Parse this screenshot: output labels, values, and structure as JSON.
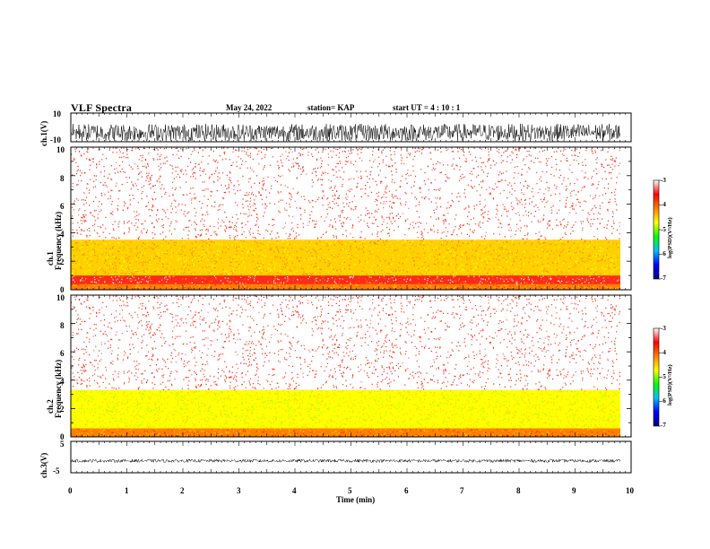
{
  "header": {
    "title": "VLF Spectra",
    "date": "May 24, 2022",
    "station": "station= KAP",
    "start": "start  UT =   4 : 10 : 1"
  },
  "colorbar": {
    "label": "log(PSD)(V²/Hz)",
    "ticks": [
      "-3",
      "-4",
      "-5",
      "-6",
      "-7"
    ],
    "range": [
      -7,
      -3
    ],
    "colors": [
      "#000080",
      "#0000ff",
      "#00c0ff",
      "#00ff00",
      "#ffff00",
      "#ff8000",
      "#ff0000",
      "#ffffff"
    ]
  },
  "chart_data": [
    {
      "type": "line",
      "panel": "ch1-waveform",
      "ylabel": "ch.1(V)",
      "ylim": [
        -10,
        10
      ],
      "yticks": [
        "10",
        "-10"
      ],
      "xlim": [
        0,
        10
      ],
      "description_values": {
        "mean": -3.5,
        "amplitude": 6
      }
    },
    {
      "type": "heatmap",
      "panel": "ch1-spectrogram",
      "ylabel": "ch.1\nFrequency (kHz)",
      "ylabel_lines": [
        "ch.1",
        "Frequency  (kHz)"
      ],
      "ylim": [
        0,
        10
      ],
      "yticks": [
        "10",
        "8",
        "6",
        "4",
        "2",
        "0"
      ],
      "xlim": [
        0,
        10
      ],
      "bands": [
        {
          "f_low": 0,
          "f_high": 0.4,
          "log_psd": -4.2
        },
        {
          "f_low": 0.4,
          "f_high": 1.0,
          "log_psd": -3.6
        },
        {
          "f_low": 1.0,
          "f_high": 3.5,
          "log_psd": -4.6
        },
        {
          "f_low": 3.5,
          "f_high": 10,
          "log_psd": -3.3
        }
      ]
    },
    {
      "type": "heatmap",
      "panel": "ch2-spectrogram",
      "ylabel_lines": [
        "ch.2",
        "Frequency  (kHz)"
      ],
      "ylim": [
        0,
        10
      ],
      "yticks": [
        "10",
        "8",
        "6",
        "4",
        "2",
        "0"
      ],
      "xlim": [
        0,
        10
      ],
      "bands": [
        {
          "f_low": 0,
          "f_high": 0.6,
          "log_psd": -4.0
        },
        {
          "f_low": 0.6,
          "f_high": 3.3,
          "log_psd": -5.0
        },
        {
          "f_low": 3.3,
          "f_high": 10,
          "log_psd": -3.3
        }
      ]
    },
    {
      "type": "line",
      "panel": "ch3-waveform",
      "ylabel": "ch.3(V)",
      "ylim": [
        -5,
        5
      ],
      "yticks": [
        "5",
        "0",
        "-5"
      ],
      "xlim": [
        0,
        10
      ],
      "description_values": {
        "mean": -1.2,
        "amplitude": 0.5
      }
    }
  ],
  "xaxis": {
    "label": "Time  (min)",
    "ticks": [
      "0",
      "1",
      "2",
      "3",
      "4",
      "5",
      "6",
      "7",
      "8",
      "9",
      "10"
    ],
    "range": [
      0,
      10
    ]
  }
}
